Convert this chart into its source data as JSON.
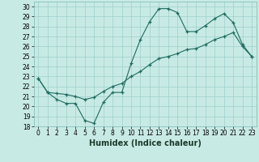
{
  "xlabel": "Humidex (Indice chaleur)",
  "xlim": [
    -0.5,
    23.5
  ],
  "ylim": [
    18,
    30.5
  ],
  "yticks": [
    18,
    19,
    20,
    21,
    22,
    23,
    24,
    25,
    26,
    27,
    28,
    29,
    30
  ],
  "xticks": [
    0,
    1,
    2,
    3,
    4,
    5,
    6,
    7,
    8,
    9,
    10,
    11,
    12,
    13,
    14,
    15,
    16,
    17,
    18,
    19,
    20,
    21,
    22,
    23
  ],
  "background_color": "#c8eae5",
  "grid_color": "#9ecfca",
  "line_color": "#1e6b5e",
  "line1_x": [
    0,
    1,
    2,
    3,
    4,
    5,
    6,
    7,
    8,
    9,
    10,
    11,
    12,
    13,
    14,
    15,
    16,
    17,
    18,
    19,
    20,
    21,
    22,
    23
  ],
  "line1_y": [
    22.8,
    21.4,
    20.7,
    20.3,
    20.3,
    18.6,
    18.3,
    20.4,
    21.4,
    21.4,
    24.3,
    26.7,
    28.5,
    29.8,
    29.8,
    29.4,
    27.5,
    27.5,
    28.1,
    28.8,
    29.3,
    28.4,
    26.2,
    25.0
  ],
  "line2_x": [
    0,
    1,
    2,
    3,
    4,
    5,
    6,
    7,
    8,
    9,
    10,
    11,
    12,
    13,
    14,
    15,
    16,
    17,
    18,
    19,
    20,
    21,
    22,
    23
  ],
  "line2_y": [
    22.8,
    21.4,
    21.3,
    21.2,
    21.0,
    20.7,
    20.9,
    21.5,
    22.0,
    22.3,
    23.0,
    23.5,
    24.2,
    24.8,
    25.0,
    25.3,
    25.7,
    25.8,
    26.2,
    26.7,
    27.0,
    27.4,
    26.0,
    25.0
  ],
  "figsize": [
    3.2,
    2.0
  ],
  "dpi": 100,
  "xlabel_fontsize": 7,
  "tick_fontsize": 5.5
}
